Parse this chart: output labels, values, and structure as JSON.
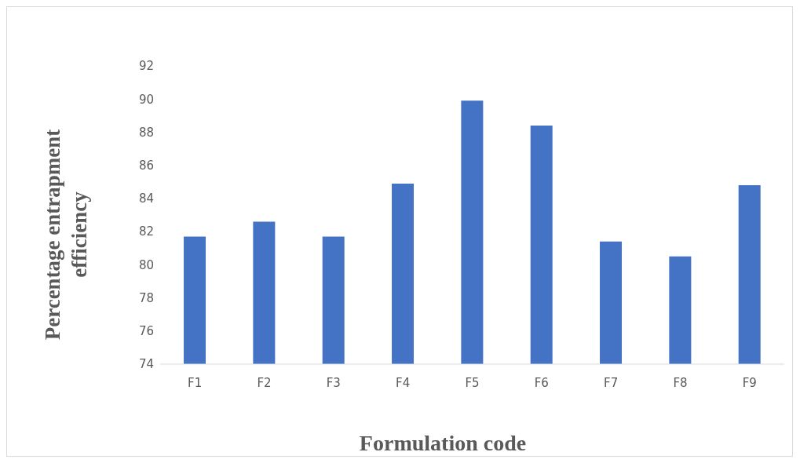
{
  "chart_data": {
    "type": "bar",
    "xlabel": "Formulation code",
    "ylabel": "Percentage entrapment efficiency",
    "categories": [
      "F1",
      "F2",
      "F3",
      "F4",
      "F5",
      "F6",
      "F7",
      "F8",
      "F9"
    ],
    "values": [
      81.7,
      82.6,
      81.7,
      84.9,
      89.9,
      88.4,
      81.4,
      80.5,
      84.8
    ],
    "color": "#4472c4",
    "ylim": [
      74,
      92
    ],
    "yticks": [
      74,
      76,
      78,
      80,
      82,
      84,
      86,
      88,
      90,
      92
    ],
    "grid": false
  }
}
